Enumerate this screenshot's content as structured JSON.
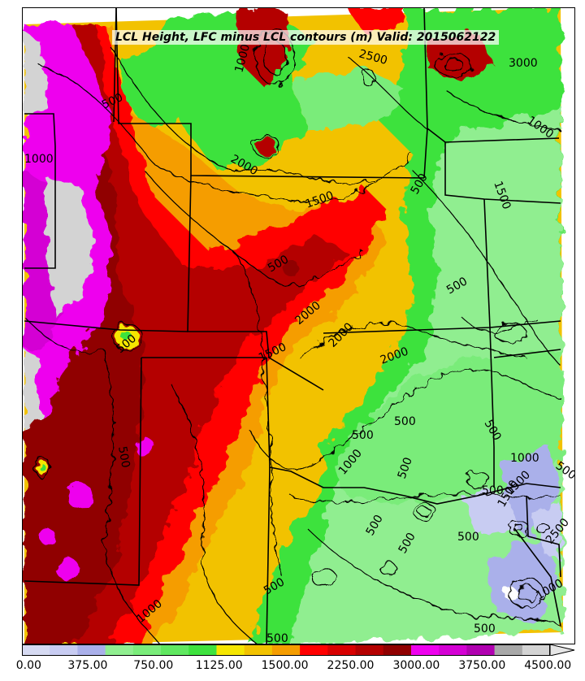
{
  "title": "LCL Height, LFC minus LCL contours (m) Valid: 2015062122",
  "colorbar": {
    "ticks": [
      "0.00",
      "375.00",
      "750.00",
      "1125.00",
      "1500.00",
      "2250.00",
      "3000.00",
      "3750.00",
      "4500.00"
    ],
    "colors": [
      "#d6daf2",
      "#c8ccf2",
      "#aab0ea",
      "#90ee90",
      "#7aec7a",
      "#60e860",
      "#3ee23e",
      "#f5e600",
      "#f2c200",
      "#f59d00",
      "#ff0000",
      "#d80000",
      "#b40000",
      "#900000",
      "#ee00ee",
      "#d400d4",
      "#b000b0",
      "#a8a8a8",
      "#d3d3d3"
    ],
    "extend": "max"
  },
  "contour_labels": [
    "500",
    "1000",
    "1500",
    "2000",
    "2500",
    "3000",
    "1000",
    "2000",
    "1500",
    "500",
    "500",
    "2000",
    "1500",
    "500",
    "500",
    "2000",
    "500",
    "1000",
    "500",
    "1500",
    "500",
    "1000",
    "500",
    "500",
    "1000",
    "500",
    "500",
    "500",
    "500",
    "1000",
    "500",
    "500",
    "1500",
    "500",
    "2500",
    "1000",
    "500"
  ],
  "colors": {
    "frame": "#000000",
    "borders": "#000000",
    "contours": "#000000"
  }
}
